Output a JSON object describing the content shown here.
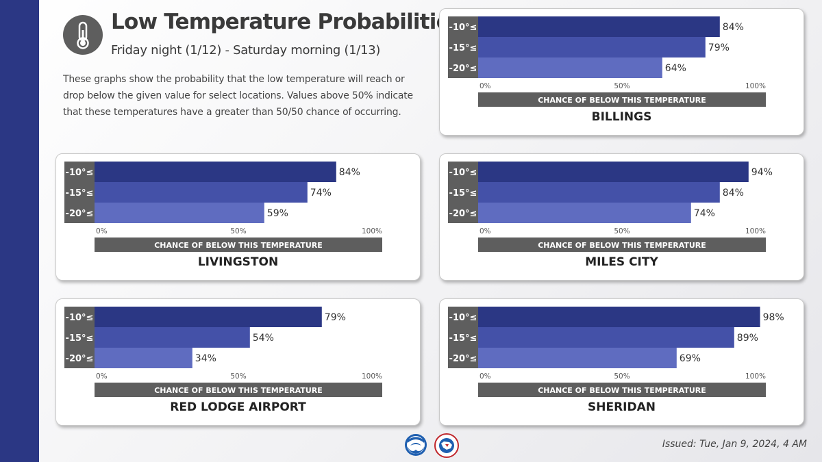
{
  "header": {
    "title": "Low Temperature Probabilities",
    "subtitle": "Friday night (1/12) - Saturday morning (1/13)",
    "description": "These graphs show the probability that the low temperature will reach or drop below the given value for select locations. Values above 50% indicate that these temperatures have a greater than 50/50 chance of occurring.",
    "icon": "thermometer-icon"
  },
  "footer": {
    "issued": "Issued: Tue, Jan 9, 2024, 4 AM",
    "logos": [
      "noaa-logo",
      "nws-logo"
    ]
  },
  "colors": {
    "sidebar": "#2b3784",
    "row_label_bg": "#5e5e5e",
    "axis_band_bg": "#5e5e5e",
    "series": [
      "#2b3784",
      "#4451a8",
      "#5f6cc0"
    ]
  },
  "chart_data": [
    {
      "type": "bar",
      "orientation": "horizontal",
      "title": "BILLINGS",
      "categories": [
        "-10°≤",
        "-15°≤",
        "-20°≤"
      ],
      "values": [
        84,
        79,
        64
      ],
      "value_labels": [
        "84%",
        "79%",
        "64%"
      ],
      "xlim": [
        0,
        100
      ],
      "xticks": [
        "0%",
        "50%",
        "100%"
      ],
      "xlabel": "CHANCE OF BELOW THIS TEMPERATURE",
      "grid": false
    },
    {
      "type": "bar",
      "orientation": "horizontal",
      "title": "LIVINGSTON",
      "categories": [
        "-10°≤",
        "-15°≤",
        "-20°≤"
      ],
      "values": [
        84,
        74,
        59
      ],
      "value_labels": [
        "84%",
        "74%",
        "59%"
      ],
      "xlim": [
        0,
        100
      ],
      "xticks": [
        "0%",
        "50%",
        "100%"
      ],
      "xlabel": "CHANCE OF BELOW THIS TEMPERATURE",
      "grid": false
    },
    {
      "type": "bar",
      "orientation": "horizontal",
      "title": "MILES CITY",
      "categories": [
        "-10°≤",
        "-15°≤",
        "-20°≤"
      ],
      "values": [
        94,
        84,
        74
      ],
      "value_labels": [
        "94%",
        "84%",
        "74%"
      ],
      "xlim": [
        0,
        100
      ],
      "xticks": [
        "0%",
        "50%",
        "100%"
      ],
      "xlabel": "CHANCE OF BELOW THIS TEMPERATURE",
      "grid": false
    },
    {
      "type": "bar",
      "orientation": "horizontal",
      "title": "RED LODGE AIRPORT",
      "categories": [
        "-10°≤",
        "-15°≤",
        "-20°≤"
      ],
      "values": [
        79,
        54,
        34
      ],
      "value_labels": [
        "79%",
        "54%",
        "34%"
      ],
      "xlim": [
        0,
        100
      ],
      "xticks": [
        "0%",
        "50%",
        "100%"
      ],
      "xlabel": "CHANCE OF BELOW THIS TEMPERATURE",
      "grid": false
    },
    {
      "type": "bar",
      "orientation": "horizontal",
      "title": "SHERIDAN",
      "categories": [
        "-10°≤",
        "-15°≤",
        "-20°≤"
      ],
      "values": [
        98,
        89,
        69
      ],
      "value_labels": [
        "98%",
        "89%",
        "69%"
      ],
      "xlim": [
        0,
        100
      ],
      "xticks": [
        "0%",
        "50%",
        "100%"
      ],
      "xlabel": "CHANCE OF BELOW THIS TEMPERATURE",
      "grid": false
    }
  ]
}
